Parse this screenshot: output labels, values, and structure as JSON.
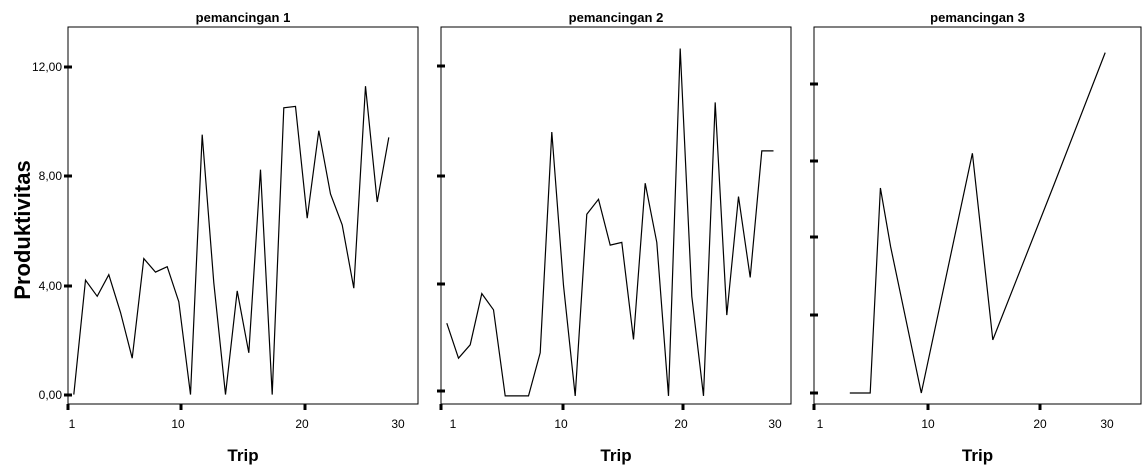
{
  "ylabel": "Produktivitas",
  "chart_data": [
    {
      "type": "line",
      "title": "pemancingan 1",
      "xlabel": "Trip",
      "xticks": [
        "1",
        "10",
        "20",
        "30"
      ],
      "yticks": [
        "0,00",
        "4,00",
        "8,00",
        "12,00"
      ],
      "x": [
        1,
        2,
        3,
        4,
        5,
        6,
        7,
        8,
        9,
        10,
        11,
        12,
        13,
        14,
        15,
        16,
        17,
        18,
        19,
        20,
        21,
        22,
        23,
        24,
        25,
        26,
        27,
        28
      ],
      "values": [
        0.05,
        4.3,
        3.7,
        4.5,
        3.1,
        1.4,
        5.1,
        4.6,
        4.8,
        3.5,
        0.05,
        9.7,
        4.2,
        0.05,
        3.9,
        1.6,
        8.4,
        0.05,
        10.7,
        10.75,
        6.6,
        9.85,
        7.5,
        6.35,
        4.0,
        11.5,
        7.2,
        9.6
      ],
      "xlim": [
        0.5,
        30.5
      ],
      "ylim": [
        -0.3,
        13.7
      ]
    },
    {
      "type": "line",
      "title": "pemancingan 2",
      "xlabel": "Trip",
      "xticks": [
        "1",
        "10",
        "20",
        "30"
      ],
      "yticks": [
        "",
        "",
        "",
        ""
      ],
      "x": [
        1,
        2,
        3,
        4,
        5,
        6,
        7,
        8,
        9,
        10,
        11,
        12,
        13,
        14,
        15,
        16,
        17,
        18,
        19,
        20,
        21,
        22,
        23,
        24,
        25,
        26,
        27,
        28,
        29
      ],
      "values": [
        2.7,
        1.4,
        1.9,
        3.8,
        3.2,
        0.0,
        0.0,
        0.0,
        1.6,
        9.8,
        4.1,
        0.0,
        6.75,
        7.3,
        5.6,
        5.7,
        2.1,
        7.9,
        5.7,
        0.0,
        12.9,
        3.7,
        0.0,
        10.9,
        3.0,
        7.4,
        4.4,
        9.1,
        9.1
      ],
      "xlim": [
        0.5,
        30.5
      ],
      "ylim": [
        -0.3,
        13.7
      ]
    },
    {
      "type": "line",
      "title": "pemancingan 3",
      "xlabel": "Trip",
      "xticks": [
        "1",
        "10",
        "20",
        "30"
      ],
      "yticks": [
        "",
        "",
        "",
        "",
        ""
      ],
      "x": [
        4,
        6,
        7,
        8,
        11,
        16,
        18,
        24,
        29
      ],
      "values": [
        0.0,
        0.0,
        11.2,
        8.0,
        0.0,
        13.1,
        2.9,
        11.4,
        18.6
      ],
      "xlim": [
        0.5,
        32.5
      ],
      "ylim": [
        -0.6,
        20.0
      ]
    }
  ]
}
